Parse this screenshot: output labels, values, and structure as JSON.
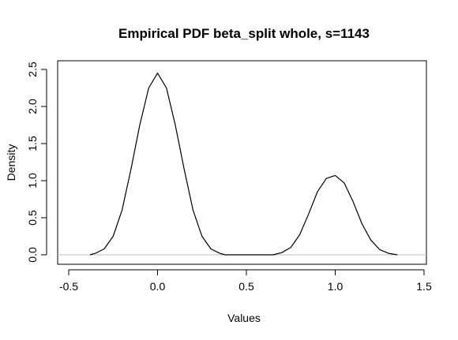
{
  "chart_data": {
    "type": "line",
    "title": "Empirical PDF beta_split whole, s=1143",
    "xlabel": "Values",
    "ylabel": "Density",
    "xlim": [
      -0.5,
      1.5
    ],
    "ylim": [
      0,
      2.5
    ],
    "x_ticks": [
      "-0.5",
      "0.0",
      "0.5",
      "1.0",
      "1.5"
    ],
    "y_ticks": [
      "0.0",
      "0.5",
      "1.0",
      "1.5",
      "2.0",
      "2.5"
    ],
    "grid": false,
    "legend": "none",
    "baseline": 0,
    "colors": {
      "line": "#000000",
      "baseline": "#bebebe",
      "frame": "#000000"
    },
    "series": [
      {
        "x": [
          -0.38,
          -0.35,
          -0.3,
          -0.25,
          -0.2,
          -0.15,
          -0.1,
          -0.05,
          0.0,
          0.05,
          0.1,
          0.15,
          0.2,
          0.25,
          0.3,
          0.35,
          0.38,
          0.65,
          0.7,
          0.75,
          0.8,
          0.85,
          0.9,
          0.95,
          1.0,
          1.05,
          1.1,
          1.15,
          1.2,
          1.25,
          1.3,
          1.35
        ],
        "y": [
          0.0,
          0.02,
          0.08,
          0.25,
          0.6,
          1.15,
          1.75,
          2.25,
          2.45,
          2.25,
          1.75,
          1.15,
          0.6,
          0.25,
          0.08,
          0.02,
          0.0,
          0.0,
          0.03,
          0.1,
          0.27,
          0.55,
          0.85,
          1.03,
          1.07,
          0.97,
          0.72,
          0.42,
          0.2,
          0.07,
          0.02,
          0.0
        ]
      }
    ]
  }
}
